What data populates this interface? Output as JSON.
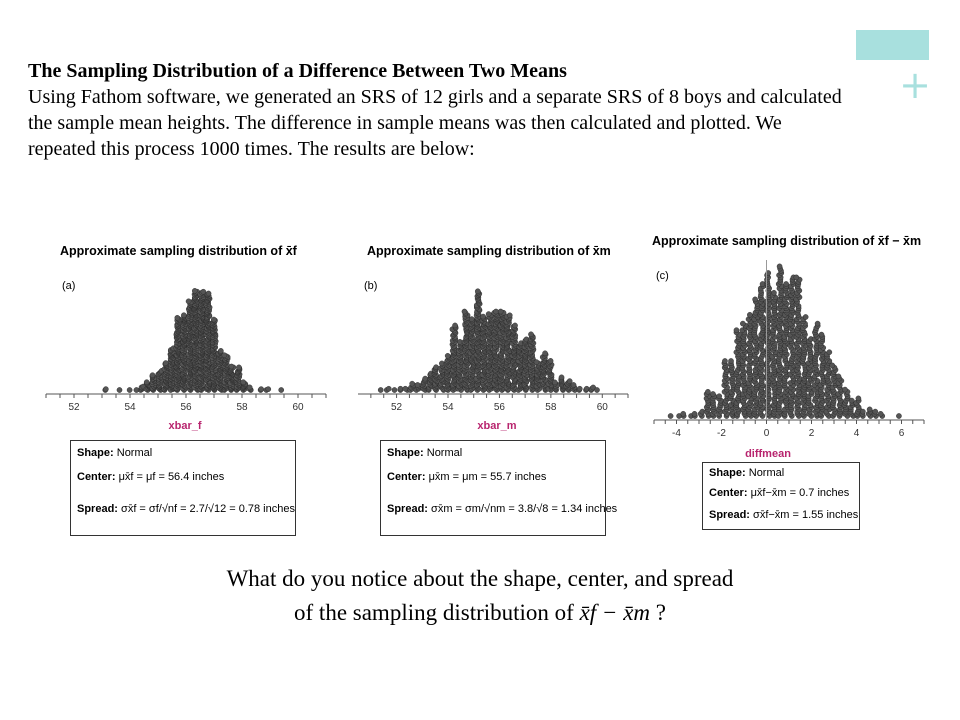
{
  "intro": {
    "title": "The Sampling Distribution of a Difference Between Two Means",
    "body": "Using Fathom software, we generated an SRS of 12 girls and a separate SRS of 8 boys and calculated the sample mean heights. The difference in sample means was then calculated and plotted.  We repeated this process 1000 times.  The results are below:"
  },
  "colors": {
    "accent": "#a8e0de",
    "axis_label": "#b8246e",
    "dot": "#555555"
  },
  "panels": [
    {
      "title": "Approximate sampling distribution of x̄f",
      "label": "(a)",
      "xlabel": "xbar_f",
      "ticks": [
        "52",
        "54",
        "56",
        "58",
        "60"
      ],
      "shape_label": "Shape:",
      "shape": "Normal",
      "center_label": "Center:",
      "center": "μx̄f = μf = 56.4 inches",
      "spread_label": "Spread:",
      "spread": "σx̄f = σf/√nf = 2.7/√12 = 0.78 inches"
    },
    {
      "title": "Approximate sampling distribution of x̄m",
      "label": "(b)",
      "xlabel": "xbar_m",
      "ticks": [
        "52",
        "54",
        "56",
        "58",
        "60"
      ],
      "shape_label": "Shape:",
      "shape": "Normal",
      "center_label": "Center:",
      "center": "μx̄m = μm = 55.7 inches",
      "spread_label": "Spread:",
      "spread": "σx̄m = σm/√nm = 3.8/√8 = 1.34 inches"
    },
    {
      "title": "Approximate sampling distribution of x̄f − x̄m",
      "label": "(c)",
      "xlabel": "diffmean",
      "ticks": [
        "-4",
        "-2",
        "0",
        "2",
        "4",
        "6"
      ],
      "shape_label": "Shape:",
      "shape": "Normal",
      "center_label": "Center:",
      "center": "μx̄f−x̄m = 0.7 inches",
      "spread_label": "Spread:",
      "spread": "σx̄f−x̄m = 1.55 inches"
    }
  ],
  "chart_data": [
    {
      "type": "scatter",
      "xlabel": "xbar_f",
      "xlim": [
        51,
        61
      ],
      "mean": 56.4,
      "sd": 0.78,
      "n": 1000
    },
    {
      "type": "scatter",
      "xlabel": "xbar_m",
      "xlim": [
        50.5,
        61
      ],
      "mean": 55.7,
      "sd": 1.34,
      "n": 1000
    },
    {
      "type": "scatter",
      "xlabel": "diffmean",
      "xlim": [
        -5,
        7
      ],
      "mean": 0.7,
      "sd": 1.55,
      "n": 1000
    }
  ],
  "question": {
    "line1": "What do you notice about the shape, center, and spread",
    "line2_prefix": "of the sampling distribution of ",
    "line2_expr": "x̄f − x̄m",
    "line2_suffix": " ?"
  }
}
